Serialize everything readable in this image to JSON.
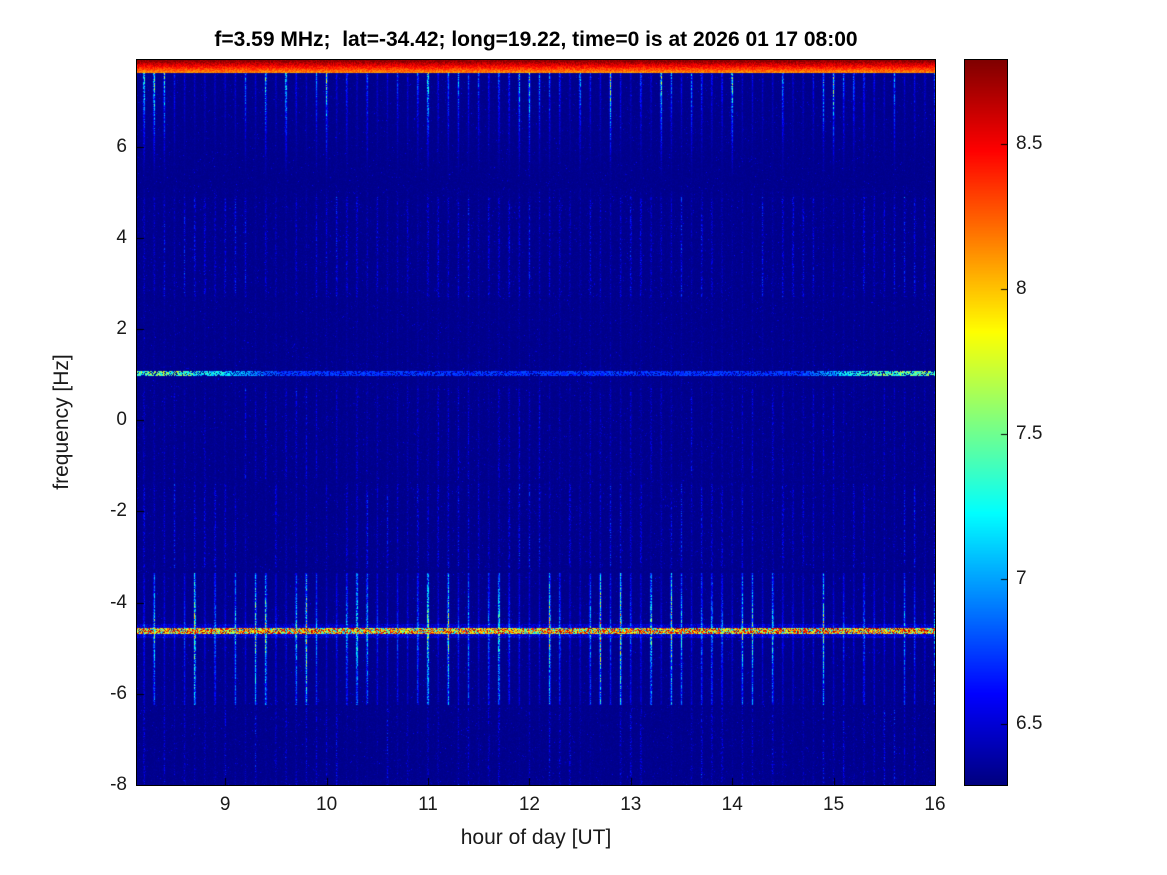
{
  "figure": {
    "background": "#ffffff"
  },
  "chart_data": {
    "type": "heatmap",
    "title": "f=3.59 MHz;  lat=-34.42; long=19.22, time=0 is at 2026 01 17 08:00",
    "xlabel": "hour of day [UT]",
    "ylabel": "frequency [Hz]",
    "x_range": [
      8.13,
      16
    ],
    "y_range": [
      -8,
      7.9
    ],
    "x_ticks": [
      "9",
      "10",
      "11",
      "12",
      "13",
      "14",
      "15",
      "16"
    ],
    "x_tick_values": [
      9,
      10,
      11,
      12,
      13,
      14,
      15,
      16
    ],
    "y_ticks": [
      "-8",
      "-6",
      "-4",
      "-2",
      "0",
      "2",
      "4",
      "6"
    ],
    "y_tick_values": [
      -8,
      -6,
      -4,
      -2,
      0,
      2,
      4,
      6
    ],
    "colormap": "jet",
    "color_limits": [
      6.29,
      8.79
    ],
    "colorbar_ticks": [
      "6.5",
      "7",
      "7.5",
      "8",
      "8.5"
    ],
    "colorbar_tick_values": [
      6.5,
      7,
      7.5,
      8,
      8.5
    ],
    "legend_position": "right-colorbar",
    "grid": false,
    "features": {
      "seed": 7,
      "noise_floor": 6.31,
      "streak_period_hours": 0.1,
      "top_band": {
        "y_start": 5.1,
        "amp_max": 2.3
      },
      "top_edge_strip": {
        "y_start": 7.62,
        "value_base": 8.0,
        "value_slope": 2.5
      },
      "bottom_band": {
        "y_min": -6.25,
        "y_max": -3.35,
        "center": -4.6,
        "amp_max": 2.1
      },
      "red_dot_line": {
        "y": -4.62,
        "half_width": 0.07,
        "value_min": 7.5,
        "value_spread": 1.3
      },
      "cyan_line": {
        "y": 1.03,
        "half_width": 0.06,
        "strong_left_until": 9.9,
        "strong_right_from": 14.4
      },
      "mid_dot_bands": [
        [
          -3.25,
          -1.4
        ],
        [
          2.7,
          4.9
        ],
        [
          -1.3,
          0.7
        ]
      ],
      "low_band_max_y": -6.3
    }
  }
}
